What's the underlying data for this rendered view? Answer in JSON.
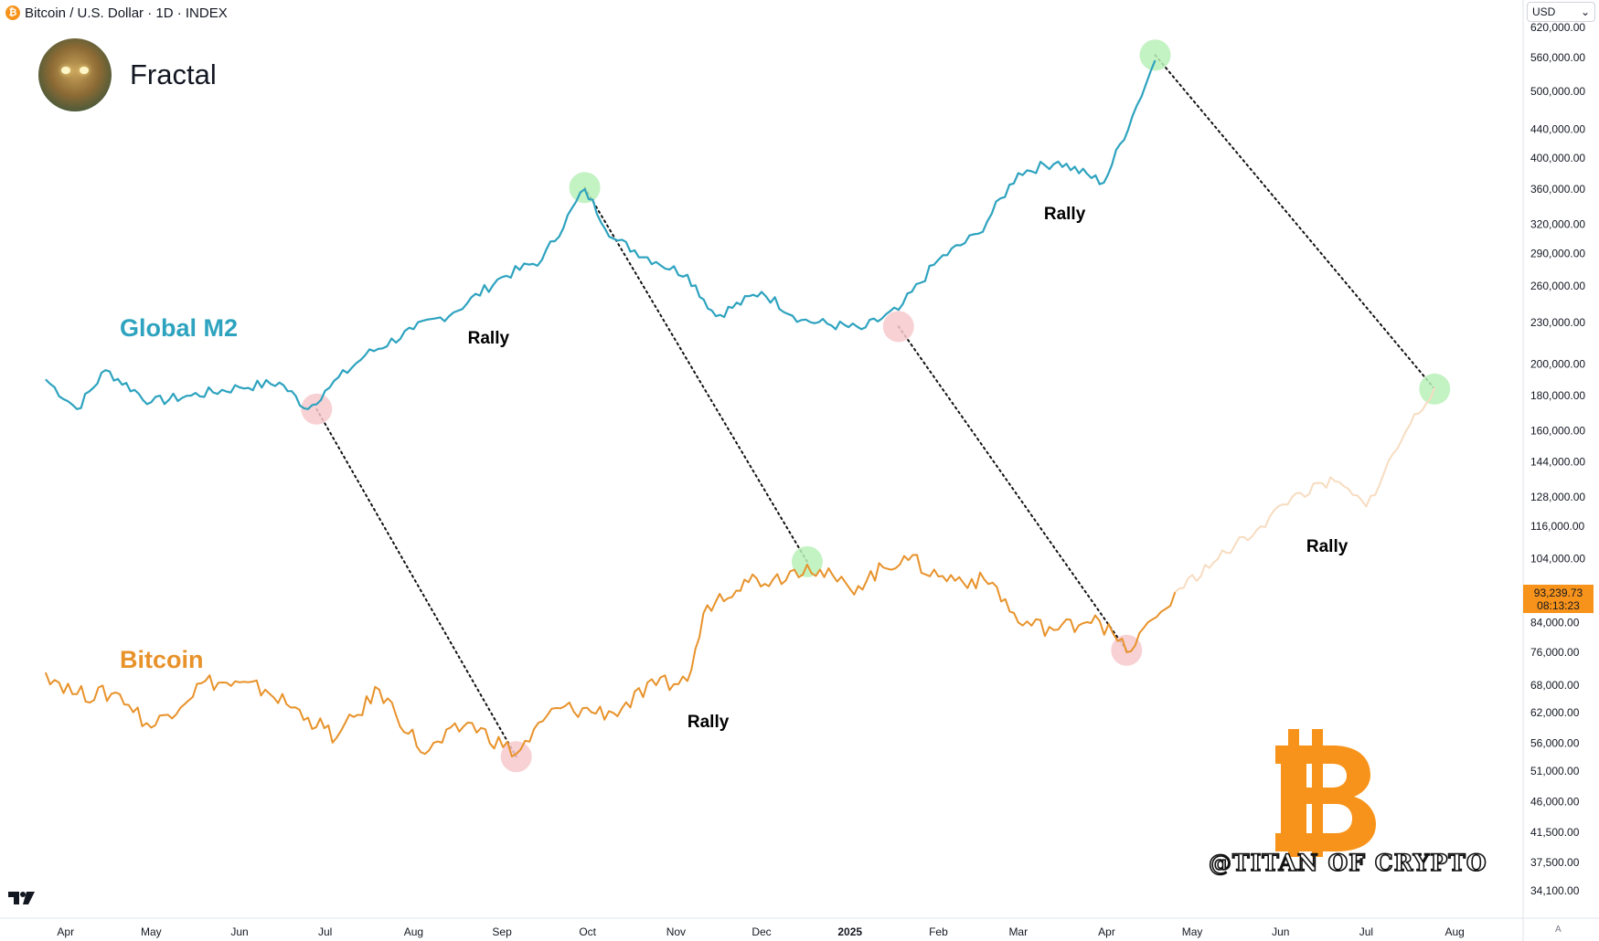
{
  "header": {
    "symbol_icon": "bitcoin-symbol-icon",
    "title": "Bitcoin / U.S. Dollar · 1D · INDEX",
    "currency": "USD",
    "chevron_icon": "chevron-down-icon"
  },
  "brand": {
    "name": "Fractal",
    "avatar_icon": "avatar-portrait"
  },
  "watermark": {
    "text": "@TITAN OF CRYPTO",
    "icon": "bitcoin-logo-icon"
  },
  "footer": {
    "auto_label": "A",
    "tv_logo_icon": "tradingview-logo-icon"
  },
  "colors": {
    "m2": "#2ea3bf",
    "bitcoin": "#e8922a",
    "bitcoin_projection": "#f7dcc0",
    "peak_marker": "#b8f0b8",
    "trough_marker": "#f7c9cc",
    "bitcoin_brand": "#f7931a"
  },
  "chart_data": {
    "type": "line",
    "y_scale": "log",
    "y_axis_ticks": [
      "620,000.00",
      "560,000.00",
      "500,000.00",
      "440,000.00",
      "400,000.00",
      "360,000.00",
      "320,000.00",
      "290,000.00",
      "260,000.00",
      "230,000.00",
      "200,000.00",
      "180,000.00",
      "160,000.00",
      "144,000.00",
      "128,000.00",
      "116,000.00",
      "104,000.00",
      "84,000.00",
      "76,000.00",
      "68,000.00",
      "62,000.00",
      "56,000.00",
      "51,000.00",
      "46,000.00",
      "41,500.00",
      "37,500.00",
      "34,100.00"
    ],
    "x_axis_ticks": [
      "Apr",
      "May",
      "Jun",
      "Jul",
      "Aug",
      "Sep",
      "Oct",
      "Nov",
      "Dec",
      "2025",
      "Feb",
      "Mar",
      "Apr",
      "May",
      "Jun",
      "Jul",
      "Aug"
    ],
    "x_axis_bold": "2025",
    "last_price": {
      "value": "93,239.73",
      "countdown": "08:13:23"
    },
    "series": [
      {
        "name": "Global M2",
        "x": [
          "2024-03-25",
          "2024-04-05",
          "2024-04-15",
          "2024-05-01",
          "2024-05-15",
          "2024-06-01",
          "2024-06-15",
          "2024-06-25",
          "2024-07-01",
          "2024-07-15",
          "2024-08-01",
          "2024-08-15",
          "2024-09-01",
          "2024-09-15",
          "2024-09-30",
          "2024-10-10",
          "2024-10-25",
          "2024-11-05",
          "2024-11-15",
          "2024-12-01",
          "2024-12-15",
          "2025-01-05",
          "2025-01-18",
          "2025-02-01",
          "2025-02-15",
          "2025-03-01",
          "2025-03-15",
          "2025-03-31",
          "2025-04-10",
          "2025-04-18"
        ],
        "values": [
          190000,
          172000,
          196000,
          176000,
          180000,
          185000,
          188000,
          172000,
          183000,
          206000,
          225000,
          238000,
          268000,
          284000,
          360000,
          305000,
          282000,
          270000,
          235000,
          255000,
          232000,
          225000,
          240000,
          284000,
          310000,
          380000,
          395000,
          368000,
          460000,
          555000
        ]
      },
      {
        "name": "Bitcoin",
        "x": [
          "2024-03-25",
          "2024-04-05",
          "2024-04-20",
          "2024-05-01",
          "2024-05-20",
          "2024-06-10",
          "2024-06-25",
          "2024-07-05",
          "2024-07-20",
          "2024-08-05",
          "2024-08-20",
          "2024-09-06",
          "2024-09-20",
          "2024-10-10",
          "2024-10-25",
          "2024-11-05",
          "2024-11-12",
          "2024-11-25",
          "2024-12-05",
          "2024-12-17",
          "2025-01-01",
          "2025-01-20",
          "2025-02-01",
          "2025-02-20",
          "2025-03-01",
          "2025-03-15",
          "2025-03-28",
          "2025-04-08",
          "2025-04-20",
          "2025-04-25"
        ],
        "values": [
          71000,
          66000,
          66000,
          59000,
          69000,
          67000,
          61000,
          57000,
          67000,
          54000,
          60000,
          54000,
          63000,
          62000,
          68000,
          69000,
          89000,
          97000,
          97000,
          102000,
          94000,
          105000,
          98000,
          96000,
          84000,
          82000,
          86000,
          76000,
          87000,
          93000
        ]
      },
      {
        "name": "Bitcoin projection",
        "x": [
          "2025-04-25",
          "2025-05-10",
          "2025-05-25",
          "2025-06-05",
          "2025-06-20",
          "2025-07-01",
          "2025-07-15",
          "2025-07-25"
        ],
        "values": [
          93000,
          104000,
          116000,
          128000,
          135000,
          124000,
          160000,
          185000
        ]
      }
    ],
    "annotations": [
      {
        "text": "Global M2",
        "x": "2024-04-20",
        "y": 225000
      },
      {
        "text": "Bitcoin",
        "x": "2024-04-20",
        "y": 74000
      },
      {
        "text": "Rally",
        "x": "2024-08-20",
        "y": 218000
      },
      {
        "text": "Rally",
        "x": "2024-11-05",
        "y": 60000
      },
      {
        "text": "Rally",
        "x": "2025-03-10",
        "y": 330000
      },
      {
        "text": "Rally",
        "x": "2025-06-10",
        "y": 108000
      }
    ],
    "markers": [
      {
        "type": "trough",
        "x": "2024-06-28",
        "y": 172000,
        "series": "Global M2"
      },
      {
        "type": "trough",
        "x": "2024-09-06",
        "y": 53500,
        "series": "Bitcoin"
      },
      {
        "type": "peak",
        "x": "2024-09-30",
        "y": 362000,
        "series": "Global M2"
      },
      {
        "type": "peak",
        "x": "2024-12-17",
        "y": 103000,
        "series": "Bitcoin"
      },
      {
        "type": "trough",
        "x": "2025-01-18",
        "y": 227000,
        "series": "Global M2"
      },
      {
        "type": "trough",
        "x": "2025-04-08",
        "y": 76500,
        "series": "Bitcoin"
      },
      {
        "type": "peak",
        "x": "2025-04-18",
        "y": 565000,
        "series": "Global M2"
      },
      {
        "type": "peak",
        "x": "2025-07-25",
        "y": 184000,
        "series": "Bitcoin projection"
      }
    ],
    "connectors": [
      [
        0,
        1
      ],
      [
        2,
        3
      ],
      [
        4,
        5
      ],
      [
        6,
        7
      ]
    ],
    "grid": false
  }
}
